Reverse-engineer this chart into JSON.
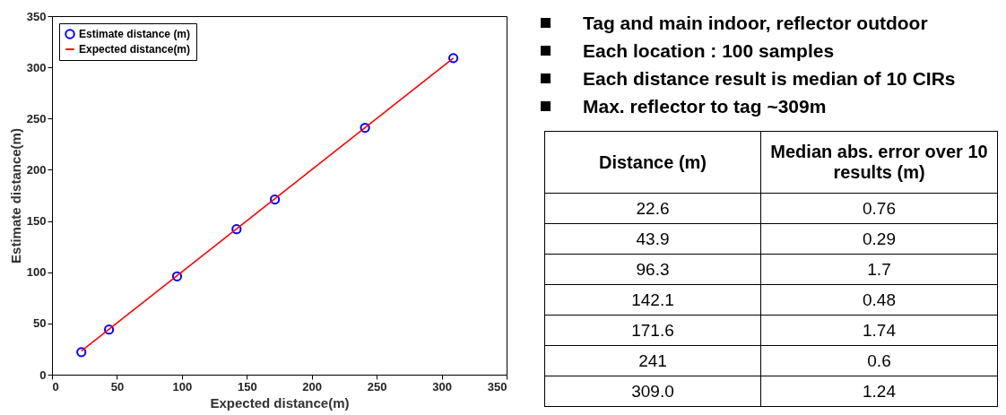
{
  "chart_data": [
    {
      "type": "scatter",
      "xlabel": "Expected distance(m)",
      "ylabel": "Estimate distance(m)",
      "xlim": [
        0,
        350
      ],
      "ylim": [
        0,
        350
      ],
      "xticks": [
        0,
        50,
        100,
        150,
        200,
        250,
        300,
        350
      ],
      "yticks": [
        0,
        50,
        100,
        150,
        200,
        250,
        300,
        350
      ],
      "grid": false,
      "legend": "top left",
      "series": [
        {
          "name": "Estimate distance (m)",
          "type": "scatter",
          "color": "#0000ff",
          "marker": "circle",
          "x": [
            22.6,
            43.9,
            96.3,
            142.1,
            171.6,
            241,
            309.0
          ],
          "values": [
            22,
            44,
            96,
            142,
            171,
            241,
            309
          ]
        },
        {
          "name": "Expected distance(m)",
          "type": "line",
          "color": "#ff0000",
          "x": [
            22.6,
            309.0
          ],
          "values": [
            23,
            309
          ]
        }
      ]
    },
    {
      "type": "other",
      "annotations": [
        "Tag and main indoor, reflector outdoor",
        "Each location : 100 samples",
        "Each distance result is median of 10 CIRs",
        "Max. reflector to tag ~309m"
      ],
      "categories": [
        "Distance (m)",
        "Median abs. error over 10 results (m)"
      ],
      "cell_labels": [
        [
          "22.6",
          "0.76"
        ],
        [
          "43.9",
          "0.29"
        ],
        [
          "96.3",
          "1.7"
        ],
        [
          "142.1",
          "0.48"
        ],
        [
          "171.6",
          "1.74"
        ],
        [
          "241",
          "0.6"
        ],
        [
          "309.0",
          "1.24"
        ]
      ]
    }
  ]
}
